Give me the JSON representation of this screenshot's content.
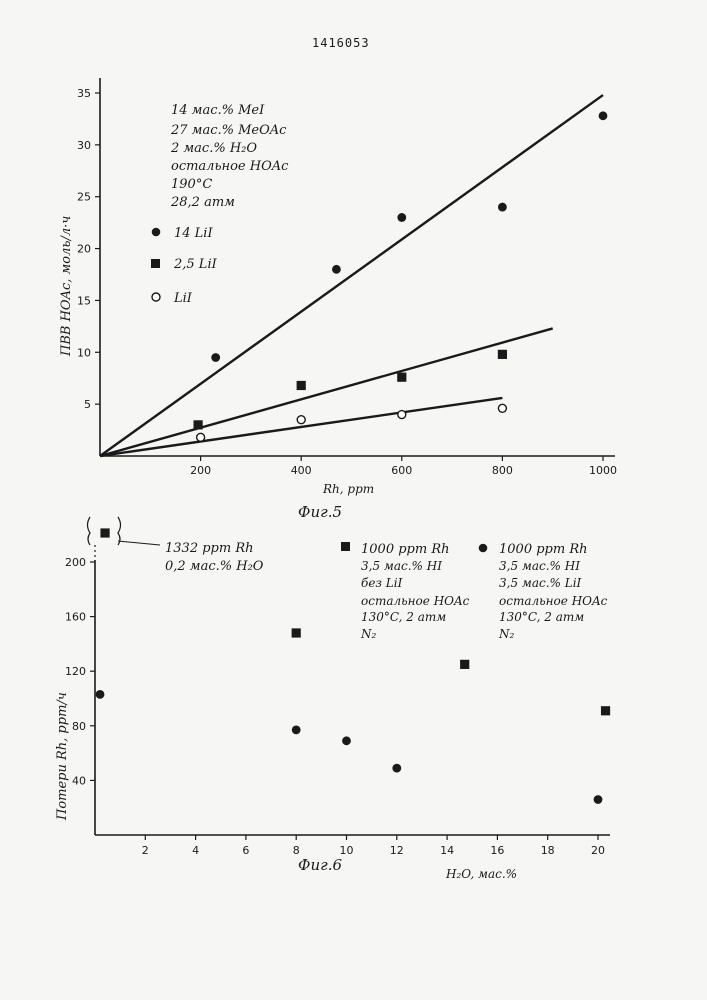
{
  "document_number": "1416053",
  "chart_data": [
    {
      "type": "scatter",
      "caption": "Фиг.5",
      "xlabel": "Rh, ppm",
      "ylabel": "ПВВ HOAc, моль/л·ч",
      "xlim": [
        0,
        1000
      ],
      "ylim": [
        0,
        35
      ],
      "xticks": [
        200,
        400,
        600,
        800,
        1000
      ],
      "yticks": [
        5,
        10,
        15,
        20,
        25,
        30,
        35
      ],
      "conditions": [
        "14 мас.% MeI",
        "27 мас.% MeOAc",
        "2 мас.% H₂O",
        "остальное HOAc",
        "190°C",
        "28,2 атм"
      ],
      "series": [
        {
          "name": "14 LiI",
          "marker": "filled-circle",
          "x": [
            230,
            470,
            600,
            800,
            1000
          ],
          "y": [
            9.5,
            18,
            23,
            24,
            32.8
          ],
          "fit": {
            "x": [
              0,
              1000
            ],
            "y": [
              0,
              34.8
            ]
          }
        },
        {
          "name": "2,5 LiI",
          "marker": "filled-square",
          "x": [
            195,
            400,
            600,
            800
          ],
          "y": [
            3.0,
            6.8,
            7.6,
            9.8
          ],
          "fit": {
            "x": [
              0,
              900
            ],
            "y": [
              0,
              12.3
            ]
          }
        },
        {
          "name": "LiI",
          "marker": "open-circle",
          "x": [
            200,
            400,
            600,
            800
          ],
          "y": [
            1.8,
            3.5,
            4.0,
            4.6
          ],
          "fit": {
            "x": [
              0,
              800
            ],
            "y": [
              0,
              5.6
            ]
          }
        }
      ]
    },
    {
      "type": "scatter",
      "caption": "Фиг.6",
      "xlabel": "H₂O, мас.%",
      "ylabel": "Потери Rh, ppm/ч",
      "xlim": [
        0,
        20.6
      ],
      "ylim": [
        0,
        240
      ],
      "xticks": [
        2,
        4,
        6,
        8,
        10,
        12,
        14,
        16,
        18,
        20
      ],
      "yticks": [
        40,
        80,
        120,
        160,
        200
      ],
      "series": [
        {
          "name": "1000 ppm Rh",
          "marker": "filled-square",
          "conditions": [
            "1000 ppm Rh",
            "3,5 мас.% HI",
            "без LiI",
            "остальное HOAc",
            "130°C, 2 атм",
            "N₂"
          ],
          "x": [
            8,
            14.7,
            20.3
          ],
          "y": [
            148,
            125,
            91
          ]
        },
        {
          "name": "1000 ppm Rh",
          "marker": "filled-circle",
          "conditions": [
            "1000 ppm Rh",
            "3,5 мас.% HI",
            "3,5 мас.% LiI",
            "остальное HOAc",
            "130°C, 2 атм",
            "N₂"
          ],
          "x": [
            0.2,
            8,
            10,
            12,
            20
          ],
          "y": [
            103,
            77,
            69,
            49,
            26
          ]
        },
        {
          "name": "1332 ppm Rh",
          "marker": "filled-square",
          "conditions": [
            "1332 ppm Rh",
            "0,2 мас.% H₂O"
          ],
          "x": [
            0.4
          ],
          "y": [
            230
          ],
          "axis_break": true
        }
      ]
    }
  ]
}
